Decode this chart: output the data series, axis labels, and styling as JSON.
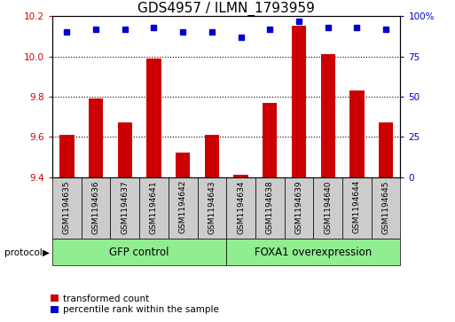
{
  "title": "GDS4957 / ILMN_1793959",
  "samples": [
    "GSM1194635",
    "GSM1194636",
    "GSM1194637",
    "GSM1194641",
    "GSM1194642",
    "GSM1194643",
    "GSM1194634",
    "GSM1194638",
    "GSM1194639",
    "GSM1194640",
    "GSM1194644",
    "GSM1194645"
  ],
  "transformed_count": [
    9.61,
    9.79,
    9.67,
    9.99,
    9.52,
    9.61,
    9.41,
    9.77,
    10.15,
    10.01,
    9.83,
    9.67
  ],
  "percentile_rank": [
    90,
    92,
    92,
    93,
    90,
    90,
    87,
    92,
    97,
    93,
    93,
    92
  ],
  "groups": [
    {
      "label": "GFP control",
      "start": 0,
      "end": 6,
      "color": "#90EE90"
    },
    {
      "label": "FOXA1 overexpression",
      "start": 6,
      "end": 12,
      "color": "#90EE90"
    }
  ],
  "ylim_left": [
    9.4,
    10.2
  ],
  "ylim_right": [
    0,
    100
  ],
  "yticks_left": [
    9.4,
    9.6,
    9.8,
    10.0,
    10.2
  ],
  "yticks_right": [
    0,
    25,
    50,
    75,
    100
  ],
  "bar_color": "#CC0000",
  "dot_color": "#0000CC",
  "title_fontsize": 11,
  "tick_fontsize": 7.5,
  "label_fontsize": 8.5,
  "sample_fontsize": 6.5,
  "legend_fontsize": 7.5,
  "bar_width": 0.5,
  "legend_items": [
    "transformed count",
    "percentile rank within the sample"
  ],
  "legend_colors": [
    "#CC0000",
    "#0000CC"
  ],
  "protocol_label": "protocol",
  "sample_box_color": "#CCCCCC",
  "group_box_color": "#90EE90"
}
